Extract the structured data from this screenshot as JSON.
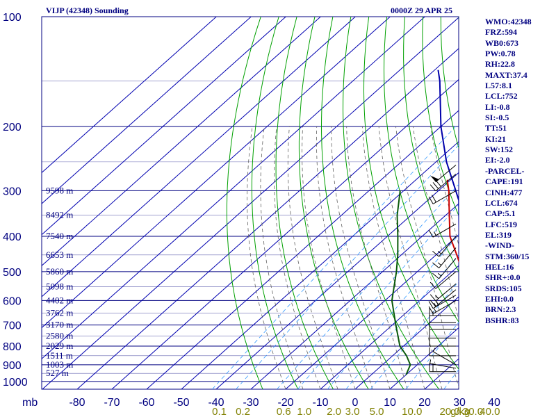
{
  "header": {
    "title": "VIJP (42348) Sounding",
    "timestamp": "0000Z 29 APR 25"
  },
  "indices": [
    "WMO:42348",
    "FRZ:594",
    "WB0:673",
    "PW:0.78",
    "RH:22.8",
    "MAXT:37.4",
    "L57:8.1",
    "LCL:752",
    "LI:-0.8",
    "SI:-0.5",
    "TT:51",
    "KI:21",
    "SW:152",
    "EI:-2.0",
    "-PARCEL-",
    "CAPE:191",
    "CINH:477",
    "LCL:674",
    "CAP:5.1",
    "LFC:519",
    "EL:319",
    "-WIND-",
    "STM:360/15",
    "HEL:16",
    "SHR+:0.0",
    "SRDS:105",
    "EHI:0.0",
    "BRN:2.3",
    "BSHR:83"
  ],
  "colors": {
    "frame": "#000080",
    "isotherm": "#0000b0",
    "dry_adiabat": "#00a000",
    "moist_adiabat": "#606060",
    "mixing_ratio": "#3399ff",
    "temperature": "#cc0000",
    "dewpoint": "#0a5a0a",
    "parcel": "#0000aa",
    "wind": "#000000",
    "mixing_label": "#808000"
  },
  "chart_data": {
    "type": "skew-t",
    "y_axis": {
      "scale": "log",
      "unit_label": "mb",
      "ticks": [
        100,
        200,
        300,
        400,
        500,
        600,
        700,
        800,
        900,
        1000
      ]
    },
    "x_axis": {
      "ticks": [
        -80,
        -70,
        -60,
        -50,
        -40,
        -30,
        -20,
        -10,
        0,
        10,
        20,
        30,
        40
      ]
    },
    "mixing_ratio_axis": {
      "ticks": [
        "0.1",
        "0.2",
        "0.6",
        "1.0",
        "2.0",
        "3.0",
        "5.0",
        "10.0",
        "20.0",
        "30.0",
        "40.0"
      ],
      "unit_label": "g/kg"
    },
    "height_labels": [
      {
        "p": 300,
        "text": "9598 m"
      },
      {
        "p": 350,
        "text": "8492 m"
      },
      {
        "p": 400,
        "text": "7540 m"
      },
      {
        "p": 450,
        "text": "6653 m"
      },
      {
        "p": 500,
        "text": "5860 m"
      },
      {
        "p": 550,
        "text": "5098 m"
      },
      {
        "p": 600,
        "text": "4402 m"
      },
      {
        "p": 650,
        "text": "3762 m"
      },
      {
        "p": 700,
        "text": "3170 m"
      },
      {
        "p": 750,
        "text": "2580 m"
      },
      {
        "p": 800,
        "text": "2029 m"
      },
      {
        "p": 850,
        "text": "1511 m"
      },
      {
        "p": 900,
        "text": "1003 m"
      },
      {
        "p": 950,
        "text": "527 m"
      }
    ],
    "series": [
      {
        "name": "temperature",
        "points": [
          [
            958,
            34
          ],
          [
            930,
            35
          ],
          [
            850,
            30
          ],
          [
            700,
            17
          ],
          [
            600,
            5
          ],
          [
            500,
            -7
          ],
          [
            450,
            -14
          ],
          [
            400,
            -22
          ],
          [
            350,
            -29
          ],
          [
            300,
            -37
          ],
          [
            280,
            -41
          ]
        ]
      },
      {
        "name": "dewpoint",
        "points": [
          [
            958,
            10
          ],
          [
            900,
            8
          ],
          [
            850,
            4
          ],
          [
            800,
            -1
          ],
          [
            700,
            -9
          ],
          [
            600,
            -18
          ],
          [
            500,
            -26
          ],
          [
            450,
            -31
          ],
          [
            400,
            -37
          ],
          [
            350,
            -44
          ],
          [
            300,
            -51
          ]
        ]
      },
      {
        "name": "parcel",
        "points": [
          [
            960,
            34
          ],
          [
            930,
            32
          ],
          [
            850,
            25
          ],
          [
            750,
            15
          ],
          [
            700,
            10
          ],
          [
            674,
            8
          ],
          [
            600,
            4
          ],
          [
            519,
            -4
          ],
          [
            450,
            -12
          ],
          [
            380,
            -22
          ],
          [
            319,
            -31
          ],
          [
            300,
            -35
          ],
          [
            250,
            -47
          ],
          [
            200,
            -60
          ],
          [
            150,
            -75
          ],
          [
            140,
            -79
          ]
        ]
      }
    ],
    "wind_barbs": [
      {
        "p": 940,
        "dir": 270,
        "spd": 20
      },
      {
        "p": 920,
        "dir": 280,
        "spd": 5
      },
      {
        "p": 900,
        "dir": 300,
        "spd": 5
      },
      {
        "p": 850,
        "dir": 270,
        "spd": 10
      },
      {
        "p": 800,
        "dir": 270,
        "spd": 10
      },
      {
        "p": 760,
        "dir": 270,
        "spd": 10
      },
      {
        "p": 720,
        "dir": 270,
        "spd": 10
      },
      {
        "p": 690,
        "dir": 270,
        "spd": 10
      },
      {
        "p": 660,
        "dir": 270,
        "spd": 15
      },
      {
        "p": 600,
        "dir": 240,
        "spd": 15
      },
      {
        "p": 580,
        "dir": 240,
        "spd": 15
      },
      {
        "p": 560,
        "dir": 230,
        "spd": 15
      },
      {
        "p": 540,
        "dir": 230,
        "spd": 15
      },
      {
        "p": 500,
        "dir": 230,
        "spd": 10
      },
      {
        "p": 460,
        "dir": 220,
        "spd": 15
      },
      {
        "p": 430,
        "dir": 220,
        "spd": 15
      },
      {
        "p": 400,
        "dir": 220,
        "spd": 15
      },
      {
        "p": 370,
        "dir": 240,
        "spd": 15
      },
      {
        "p": 300,
        "dir": 240,
        "spd": 20
      },
      {
        "p": 270,
        "dir": 230,
        "spd": 30
      },
      {
        "p": 255,
        "dir": 230,
        "spd": 50
      }
    ]
  }
}
